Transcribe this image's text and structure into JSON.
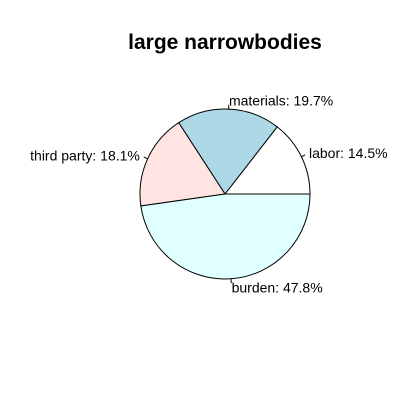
{
  "chart_data": {
    "type": "pie",
    "title": "large narrowbodies",
    "start_angle_deg": 0,
    "direction": "counterclockwise",
    "slices": [
      {
        "label": "labor: 14.5%",
        "value": 14.5,
        "color": "#ffffff"
      },
      {
        "label": "materials: 19.7%",
        "value": 19.7,
        "color": "#add8e6"
      },
      {
        "label": "third party: 18.1%",
        "value": 18.1,
        "color": "#ffe4e1"
      },
      {
        "label": "burden: 47.8%",
        "value": 47.8,
        "color": "#e0ffff"
      }
    ]
  }
}
